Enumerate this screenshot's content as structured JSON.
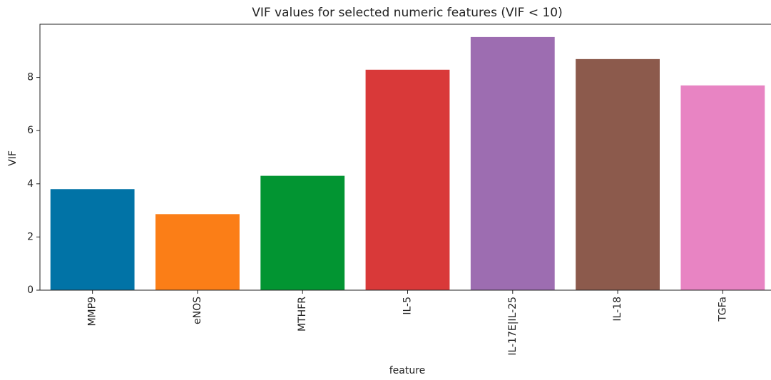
{
  "chart_data": {
    "type": "bar",
    "title": "VIF values for selected numeric features (VIF < 10)",
    "x_label": "feature",
    "y_label": "VIF",
    "categories": [
      "MMP9",
      "eNOS",
      "MTHFR",
      "IL-5",
      "IL-17E|IL-25",
      "IL-18",
      "TGFa"
    ],
    "values": [
      3.8,
      2.86,
      4.3,
      8.29,
      9.52,
      8.69,
      7.7
    ],
    "colors": [
      "#0173a6",
      "#fb7e17",
      "#029532",
      "#d93939",
      "#9d6db1",
      "#8c5a4c",
      "#e884c3"
    ],
    "ylim": [
      0,
      10
    ],
    "yticks": [
      0,
      2,
      4,
      6,
      8
    ],
    "grid": false
  }
}
